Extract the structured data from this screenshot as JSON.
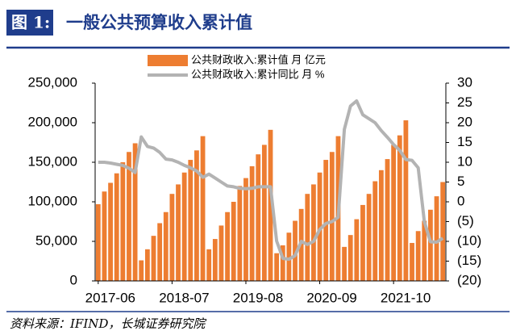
{
  "chart_data": {
    "type": "combo",
    "figure_label": "图 1:",
    "title": "一般公共预算收入累计值",
    "source": "资料来源：IFIND，长城证券研究院",
    "categories": [
      "2017-06",
      null,
      null,
      null,
      null,
      null,
      null,
      null,
      null,
      null,
      null,
      null,
      "2018-07",
      null,
      null,
      null,
      null,
      null,
      null,
      null,
      null,
      null,
      null,
      null,
      "2019-08",
      null,
      null,
      null,
      null,
      null,
      null,
      null,
      null,
      null,
      null,
      null,
      "2020-09",
      null,
      null,
      null,
      null,
      null,
      null,
      null,
      null,
      null,
      null,
      null,
      "2021-10",
      null,
      null,
      null,
      null,
      null,
      null,
      null,
      null
    ],
    "series": [
      {
        "name": "公共财政收入:累计值 月 亿元",
        "type": "bar",
        "color": "#ed7d31",
        "values": [
          97000,
          113000,
          124000,
          136000,
          150000,
          163000,
          174000,
          26000,
          40000,
          57000,
          73000,
          87000,
          110000,
          122000,
          137000,
          153000,
          165000,
          183000,
          40000,
          53000,
          70000,
          87000,
          100000,
          120000,
          130000,
          145000,
          160000,
          172000,
          191000,
          35000,
          45000,
          61000,
          76000,
          91000,
          110000,
          122000,
          137000,
          153000,
          163000,
          183000,
          43000,
          58000,
          78000,
          96000,
          110000,
          126000,
          140000,
          154000,
          172000,
          184000,
          203000,
          48000,
          63000,
          76000,
          90000,
          107000,
          125000
        ]
      },
      {
        "name": "公共财政收入:累计同比 月 %",
        "type": "line",
        "axis": "y2",
        "color": "#b3b3b3",
        "values": [
          10,
          10,
          9.8,
          9.5,
          9.2,
          8.5,
          7.4,
          16.4,
          14,
          13.6,
          12.5,
          10.8,
          10.6,
          10,
          9.2,
          8.6,
          7.8,
          6.2,
          7,
          6,
          5,
          4,
          3.8,
          3.4,
          3.3,
          3.4,
          3.8,
          3.8,
          3.8,
          -9.9,
          -14.3,
          -14.5,
          -13.6,
          -10,
          -10.8,
          -10,
          -7,
          -5.5,
          -5,
          -3.9,
          18.3,
          24.2,
          25.5,
          22,
          21,
          20,
          18,
          16.3,
          14.5,
          13,
          10.7,
          10.5,
          8.6,
          -5,
          -10.1,
          -10.2,
          -9.2
        ]
      }
    ],
    "ylim": [
      0,
      250000
    ],
    "yticks": [
      0,
      {
        "value": 50000,
        "label": "50,000"
      },
      {
        "value": 100000,
        "label": "100,000"
      },
      {
        "value": 150000,
        "label": "150,000"
      },
      {
        "value": 200000,
        "label": "200,000"
      },
      {
        "value": 250000,
        "label": "250,000"
      }
    ],
    "y2lim": [
      -20,
      30
    ],
    "y2ticks": [
      {
        "value": -20,
        "label": "(20)"
      },
      {
        "value": -15,
        "label": "(15)"
      },
      {
        "value": -10,
        "label": "(10)"
      },
      {
        "value": -5,
        "label": "(5)"
      },
      0,
      5,
      10,
      15,
      20,
      25,
      30
    ],
    "negative_tick_color": "#e60000",
    "grid": false
  }
}
